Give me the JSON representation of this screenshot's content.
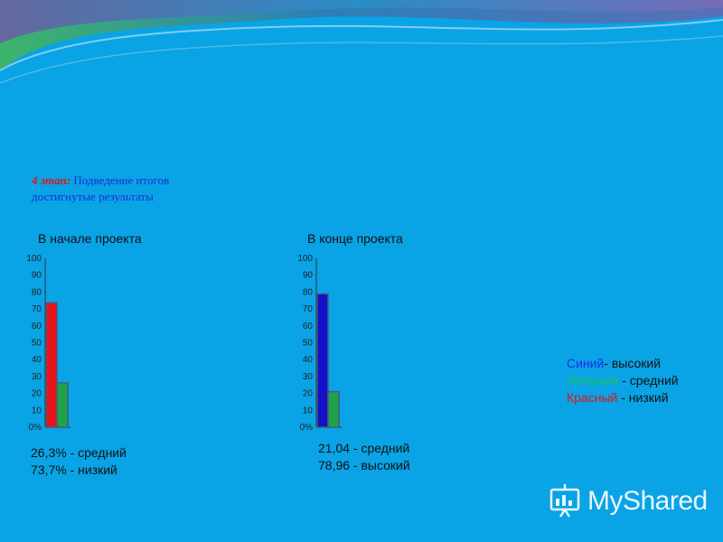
{
  "stage": {
    "number_label": "4 этап:",
    "title": "Подведение итогов",
    "subtitle": "достигнутые результаты"
  },
  "chart_data": [
    {
      "type": "bar",
      "title": "В начале проекта",
      "ylim": [
        0,
        100
      ],
      "yticks": [
        "0%",
        "10",
        "20",
        "30",
        "40",
        "50",
        "60",
        "70",
        "80",
        "90",
        "100"
      ],
      "series": [
        {
          "name": "Красный - низкий",
          "color": "#e8141c",
          "value": 73.7
        },
        {
          "name": "Зеленый - средний",
          "color": "#1fa34a",
          "value": 26.3
        }
      ],
      "annotations": [
        "26,3% - средний",
        "73,7% - низкий"
      ]
    },
    {
      "type": "bar",
      "title": "В конце проекта",
      "ylim": [
        0,
        100
      ],
      "yticks": [
        "0%",
        "10",
        "20",
        "30",
        "40",
        "50",
        "60",
        "70",
        "80",
        "90",
        "100"
      ],
      "series": [
        {
          "name": "Синий- высокий",
          "color": "#1410c8",
          "value": 78.96
        },
        {
          "name": "Зеленый - средний",
          "color": "#1fa34a",
          "value": 21.04
        }
      ],
      "annotations": [
        "21,04 - средний",
        "78,96 - высокий"
      ]
    }
  ],
  "legend": {
    "blue_word": "Синий",
    "blue_rest": "- высокий",
    "green_word": "Зеленый",
    "green_rest": " - средний",
    "red_word": "Красный",
    "red_rest": " - низкий"
  },
  "brand": {
    "name": "MyShared"
  },
  "colors": {
    "background": "#0aa3e6",
    "bar_red": "#e8141c",
    "bar_green": "#1fa34a",
    "bar_blue": "#1410c8"
  }
}
